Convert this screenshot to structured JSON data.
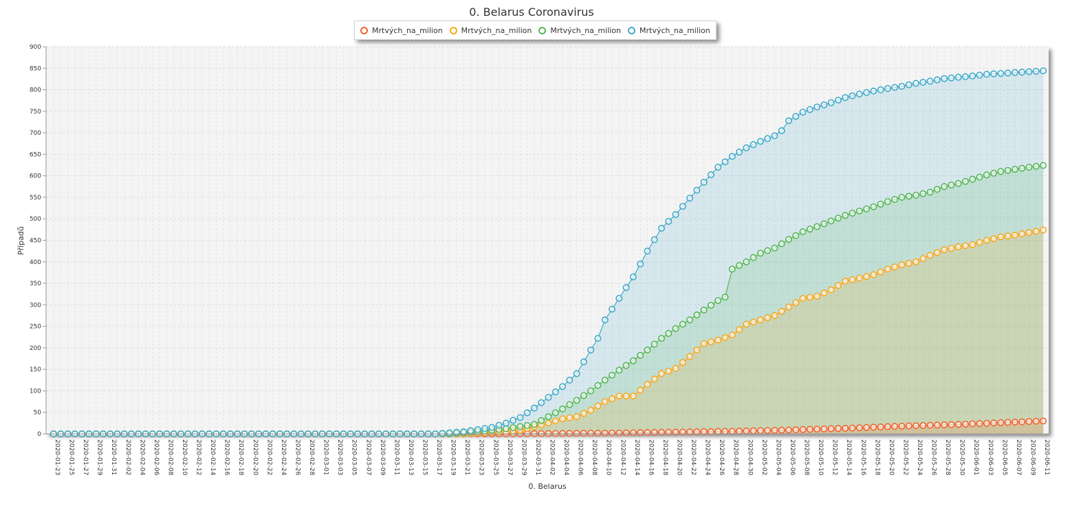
{
  "chart_data": {
    "type": "area",
    "title": "0. Belarus Coronavirus",
    "xlabel": "0. Belarus",
    "ylabel": "Případů",
    "ylim": [
      0,
      900
    ],
    "yticks": [
      0,
      50,
      100,
      150,
      200,
      250,
      300,
      350,
      400,
      450,
      500,
      550,
      600,
      650,
      700,
      750,
      800,
      850,
      900
    ],
    "x_start": "2020-01-23",
    "x_end": "2020-06-11",
    "x_tick_labels": [
      "2020-01-23",
      "2020-01-25",
      "2020-01-27",
      "2020-01-29",
      "2020-01-31",
      "2020-02-02",
      "2020-02-04",
      "2020-02-06",
      "2020-02-08",
      "2020-02-10",
      "2020-02-12",
      "2020-02-14",
      "2020-02-16",
      "2020-02-18",
      "2020-02-20",
      "2020-02-22",
      "2020-02-24",
      "2020-02-26",
      "2020-02-28",
      "2020-03-01",
      "2020-03-03",
      "2020-03-05",
      "2020-03-07",
      "2020-03-09",
      "2020-03-11",
      "2020-03-13",
      "2020-03-15",
      "2020-03-17",
      "2020-03-19",
      "2020-03-21",
      "2020-03-23",
      "2020-03-25",
      "2020-03-27",
      "2020-03-29",
      "2020-03-31",
      "2020-04-02",
      "2020-04-04",
      "2020-04-06",
      "2020-04-08",
      "2020-04-10",
      "2020-04-12",
      "2020-04-14",
      "2020-04-16",
      "2020-04-18",
      "2020-04-20",
      "2020-04-22",
      "2020-04-24",
      "2020-04-26",
      "2020-04-28",
      "2020-04-30",
      "2020-05-02",
      "2020-05-04",
      "2020-05-06",
      "2020-05-08",
      "2020-05-10",
      "2020-05-12",
      "2020-05-14",
      "2020-05-16",
      "2020-05-18",
      "2020-05-20",
      "2020-05-22",
      "2020-05-24",
      "2020-05-26",
      "2020-05-28",
      "2020-05-30",
      "2020-06-01",
      "2020-06-03",
      "2020-06-05",
      "2020-06-07",
      "2020-06-09",
      "2020-06-11"
    ],
    "legend_position": "top-center",
    "grid": true,
    "series": [
      {
        "name": "Mrtvých_na_milion",
        "color": "#f3622d",
        "points": [
          [
            "2020-01-23",
            0
          ],
          [
            "2020-03-25",
            0
          ],
          [
            "2020-04-04",
            1
          ],
          [
            "2020-04-12",
            2
          ],
          [
            "2020-04-20",
            4
          ],
          [
            "2020-04-28",
            6
          ],
          [
            "2020-05-06",
            9
          ],
          [
            "2020-05-14",
            13
          ],
          [
            "2020-05-22",
            18
          ],
          [
            "2020-05-30",
            22
          ],
          [
            "2020-06-05",
            26
          ],
          [
            "2020-06-11",
            30
          ]
        ]
      },
      {
        "name": "Mrtvých_na_milion",
        "color": "#fba71b",
        "points": [
          [
            "2020-01-23",
            0
          ],
          [
            "2020-03-21",
            0
          ],
          [
            "2020-03-25",
            3
          ],
          [
            "2020-03-29",
            8
          ],
          [
            "2020-04-02",
            25
          ],
          [
            "2020-04-04",
            35
          ],
          [
            "2020-04-06",
            40
          ],
          [
            "2020-04-08",
            55
          ],
          [
            "2020-04-10",
            75
          ],
          [
            "2020-04-12",
            88
          ],
          [
            "2020-04-14",
            88
          ],
          [
            "2020-04-16",
            115
          ],
          [
            "2020-04-18",
            140
          ],
          [
            "2020-04-20",
            152
          ],
          [
            "2020-04-22",
            180
          ],
          [
            "2020-04-24",
            210
          ],
          [
            "2020-04-26",
            218
          ],
          [
            "2020-04-28",
            230
          ],
          [
            "2020-04-30",
            255
          ],
          [
            "2020-05-02",
            265
          ],
          [
            "2020-05-04",
            275
          ],
          [
            "2020-05-06",
            295
          ],
          [
            "2020-05-08",
            315
          ],
          [
            "2020-05-10",
            320
          ],
          [
            "2020-05-12",
            335
          ],
          [
            "2020-05-14",
            355
          ],
          [
            "2020-05-16",
            362
          ],
          [
            "2020-05-18",
            370
          ],
          [
            "2020-05-20",
            383
          ],
          [
            "2020-05-22",
            393
          ],
          [
            "2020-05-24",
            400
          ],
          [
            "2020-05-26",
            415
          ],
          [
            "2020-05-28",
            428
          ],
          [
            "2020-05-30",
            435
          ],
          [
            "2020-06-01",
            440
          ],
          [
            "2020-06-03",
            450
          ],
          [
            "2020-06-05",
            458
          ],
          [
            "2020-06-07",
            462
          ],
          [
            "2020-06-09",
            468
          ],
          [
            "2020-06-11",
            474
          ]
        ]
      },
      {
        "name": "Mrtvých_na_milion",
        "color": "#57b757",
        "points": [
          [
            "2020-01-23",
            0
          ],
          [
            "2020-03-19",
            0
          ],
          [
            "2020-03-23",
            5
          ],
          [
            "2020-03-27",
            12
          ],
          [
            "2020-03-31",
            22
          ],
          [
            "2020-04-02",
            40
          ],
          [
            "2020-04-04",
            58
          ],
          [
            "2020-04-06",
            78
          ],
          [
            "2020-04-08",
            100
          ],
          [
            "2020-04-10",
            125
          ],
          [
            "2020-04-12",
            148
          ],
          [
            "2020-04-14",
            170
          ],
          [
            "2020-04-16",
            195
          ],
          [
            "2020-04-18",
            222
          ],
          [
            "2020-04-20",
            245
          ],
          [
            "2020-04-22",
            265
          ],
          [
            "2020-04-24",
            288
          ],
          [
            "2020-04-26",
            310
          ],
          [
            "2020-04-27",
            318
          ],
          [
            "2020-04-28",
            383
          ],
          [
            "2020-04-30",
            400
          ],
          [
            "2020-05-02",
            420
          ],
          [
            "2020-05-04",
            432
          ],
          [
            "2020-05-06",
            452
          ],
          [
            "2020-05-08",
            470
          ],
          [
            "2020-05-10",
            482
          ],
          [
            "2020-05-12",
            495
          ],
          [
            "2020-05-14",
            508
          ],
          [
            "2020-05-16",
            518
          ],
          [
            "2020-05-18",
            528
          ],
          [
            "2020-05-20",
            540
          ],
          [
            "2020-05-22",
            550
          ],
          [
            "2020-05-24",
            555
          ],
          [
            "2020-05-26",
            562
          ],
          [
            "2020-05-28",
            575
          ],
          [
            "2020-05-30",
            582
          ],
          [
            "2020-06-01",
            592
          ],
          [
            "2020-06-03",
            602
          ],
          [
            "2020-06-05",
            610
          ],
          [
            "2020-06-07",
            615
          ],
          [
            "2020-06-09",
            620
          ],
          [
            "2020-06-11",
            624
          ]
        ]
      },
      {
        "name": "Mrtvých_na_milion",
        "color": "#41a9c9",
        "points": [
          [
            "2020-01-23",
            0
          ],
          [
            "2020-03-17",
            0
          ],
          [
            "2020-03-21",
            5
          ],
          [
            "2020-03-25",
            15
          ],
          [
            "2020-03-27",
            25
          ],
          [
            "2020-03-29",
            38
          ],
          [
            "2020-03-31",
            60
          ],
          [
            "2020-04-02",
            85
          ],
          [
            "2020-04-04",
            110
          ],
          [
            "2020-04-06",
            140
          ],
          [
            "2020-04-08",
            195
          ],
          [
            "2020-04-09",
            222
          ],
          [
            "2020-04-10",
            265
          ],
          [
            "2020-04-12",
            315
          ],
          [
            "2020-04-14",
            365
          ],
          [
            "2020-04-16",
            425
          ],
          [
            "2020-04-18",
            478
          ],
          [
            "2020-04-20",
            510
          ],
          [
            "2020-04-22",
            548
          ],
          [
            "2020-04-24",
            585
          ],
          [
            "2020-04-26",
            620
          ],
          [
            "2020-04-28",
            645
          ],
          [
            "2020-04-30",
            665
          ],
          [
            "2020-05-02",
            680
          ],
          [
            "2020-05-04",
            693
          ],
          [
            "2020-05-05",
            705
          ],
          [
            "2020-05-06",
            728
          ],
          [
            "2020-05-08",
            748
          ],
          [
            "2020-05-10",
            760
          ],
          [
            "2020-05-12",
            770
          ],
          [
            "2020-05-14",
            782
          ],
          [
            "2020-05-16",
            790
          ],
          [
            "2020-05-18",
            797
          ],
          [
            "2020-05-20",
            803
          ],
          [
            "2020-05-22",
            808
          ],
          [
            "2020-05-24",
            815
          ],
          [
            "2020-05-26",
            820
          ],
          [
            "2020-05-28",
            826
          ],
          [
            "2020-05-30",
            829
          ],
          [
            "2020-06-01",
            832
          ],
          [
            "2020-06-03",
            836
          ],
          [
            "2020-06-05",
            838
          ],
          [
            "2020-06-07",
            840
          ],
          [
            "2020-06-09",
            842
          ],
          [
            "2020-06-11",
            844
          ]
        ]
      }
    ]
  }
}
